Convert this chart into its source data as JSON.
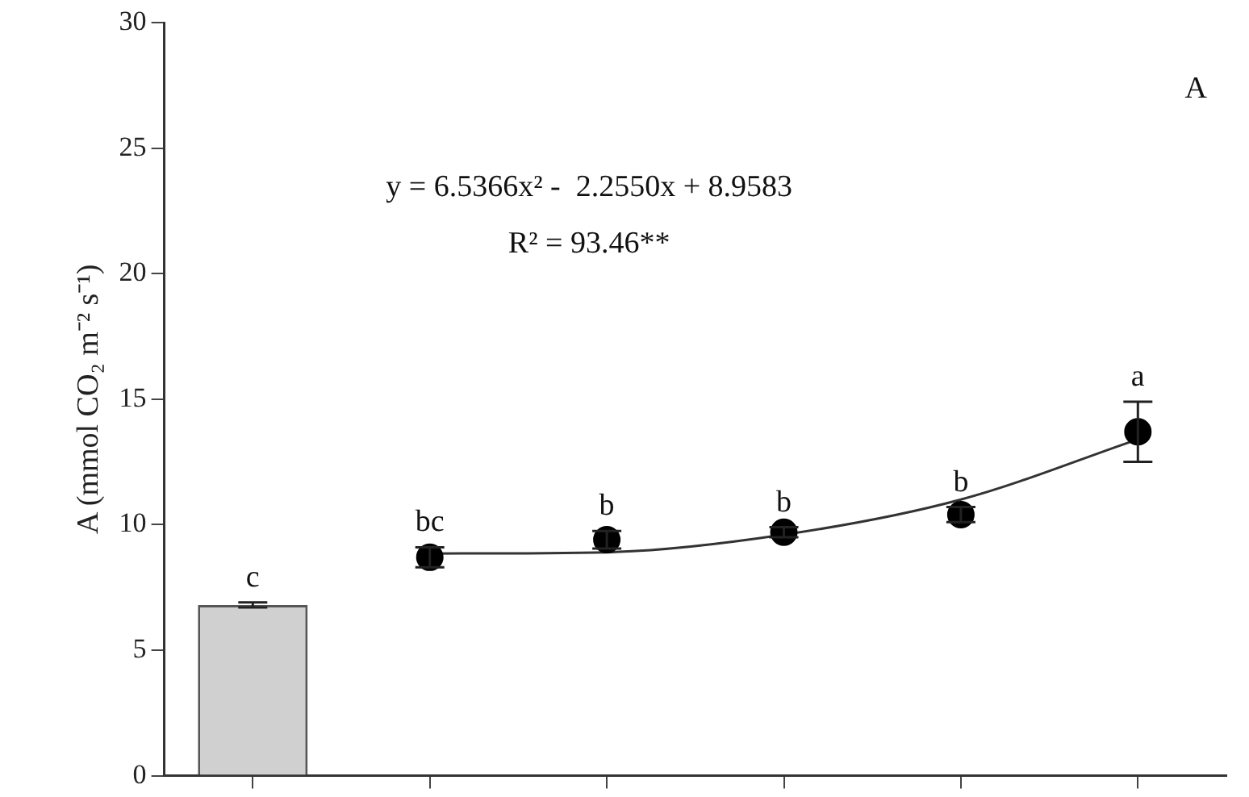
{
  "chart_data": {
    "type": "bar",
    "ylabel": "A (mmol CO₂ m⁻² s⁻¹)",
    "categories": [
      null,
      null,
      null,
      null,
      null,
      null
    ],
    "series": [
      {
        "color": "#d0d0d0",
        "values": [
          6.8,
          null,
          null,
          null,
          null,
          null
        ],
        "errors": [
          0.1,
          null,
          null,
          null,
          null,
          null
        ],
        "value_labels": [
          "c",
          null,
          null,
          null,
          null,
          null
        ]
      },
      {
        "type": "scatter",
        "color": "#000000",
        "marker": "circle",
        "values": [
          null,
          8.7,
          9.4,
          9.7,
          10.4,
          13.7
        ],
        "errors": [
          null,
          0.4,
          0.35,
          0.2,
          0.3,
          1.2
        ],
        "value_labels": [
          null,
          "bc",
          "b",
          "b",
          "b",
          "a"
        ]
      },
      {
        "type": "line",
        "color": "#333333",
        "marker": "none",
        "values": [
          null,
          8.85,
          8.9,
          9.6,
          11.0,
          13.4
        ]
      }
    ],
    "ylim": [
      0,
      30
    ],
    "yticks": [
      0,
      5,
      10,
      15,
      20,
      25,
      30
    ],
    "grid": false,
    "legend": false,
    "tick_labels": "y",
    "annotations": [
      "y = 6.5366x² -  2.2550x + 8.9583",
      "R² = 93.46**",
      "A"
    ]
  }
}
